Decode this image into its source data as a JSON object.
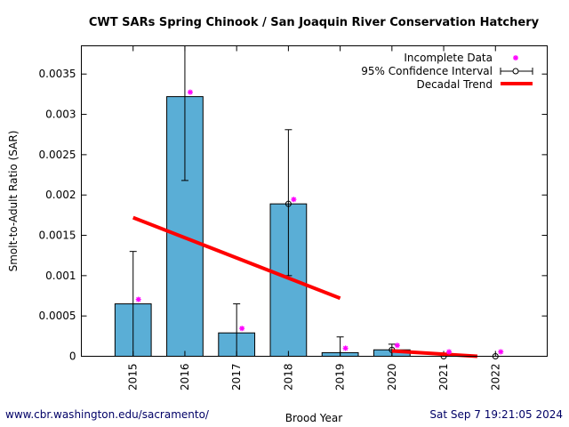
{
  "chart_data": {
    "type": "bar",
    "title": "CWT SARs Spring Chinook  / San Joaquin River Conservation Hatchery",
    "xlabel": "Brood Year",
    "ylabel": "Smolt-to-Adult Ratio (SAR)",
    "xlim": [
      2014,
      2023
    ],
    "ylim": [
      0,
      0.00385
    ],
    "yticks": [
      0,
      0.0005,
      0.001,
      0.0015,
      0.002,
      0.0025,
      0.003,
      0.0035
    ],
    "ytick_labels": [
      "0",
      "0.0005",
      "0.001",
      "0.0015",
      "0.002",
      "0.0025",
      "0.003",
      "0.0035"
    ],
    "categories": [
      "2015",
      "2016",
      "2017",
      "2018",
      "2019",
      "2020",
      "2021",
      "2022"
    ],
    "values": [
      0.00065,
      0.00322,
      0.00029,
      0.00189,
      4.5e-05,
      8e-05,
      0,
      0
    ],
    "bar_color": "#5aaed6",
    "confidence_interval": [
      [
        0,
        0.0013
      ],
      [
        0.00218,
        0.0045
      ],
      [
        0,
        0.00065
      ],
      [
        0.001,
        0.00281
      ],
      [
        0,
        0.00024
      ],
      [
        0,
        0.00015
      ],
      null,
      null
    ],
    "point_estimates_marked": [
      "2018",
      "2020",
      "2021",
      "2022"
    ],
    "incomplete_data": [
      "2015",
      "2016",
      "2017",
      "2018",
      "2019",
      "2020",
      "2021",
      "2022"
    ],
    "incomplete_color": "#ff00ff",
    "trend_segments": [
      {
        "x": [
          2015,
          2019
        ],
        "y": [
          0.00172,
          0.00072
        ]
      },
      {
        "x": [
          2020,
          2021.65
        ],
        "y": [
          6.6e-05,
          0
        ]
      }
    ],
    "trend_color": "#ff0000",
    "legend": {
      "placement": "top-right",
      "entries": [
        "Incomplete Data",
        "95% Confidence Interval",
        "Decadal Trend"
      ]
    },
    "grid": false
  },
  "footer": {
    "url": "www.cbr.washington.edu/sacramento/",
    "timestamp": "Sat Sep  7 19:21:05 2024",
    "color": "#000066"
  }
}
